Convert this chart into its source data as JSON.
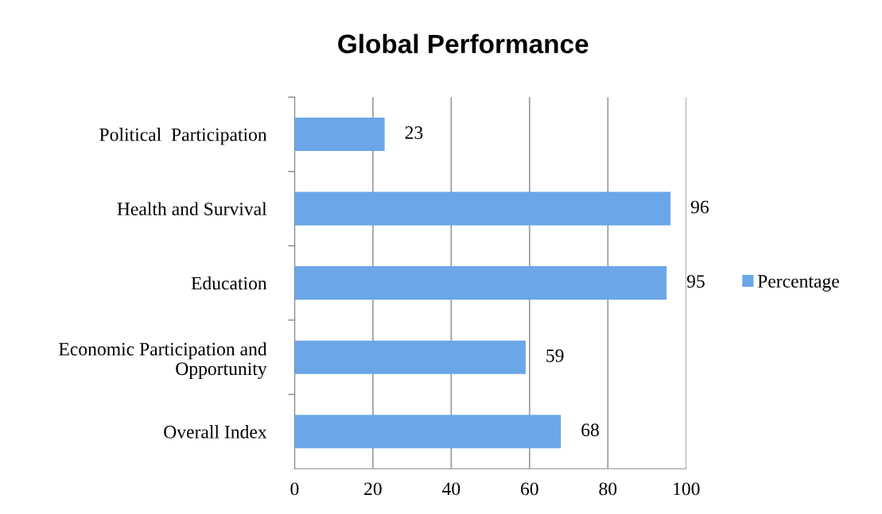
{
  "chart_data": {
    "type": "bar",
    "orientation": "horizontal",
    "title": "Global Performance",
    "categories": [
      "Political  Participation",
      "Health and Survival",
      "Education",
      "Economic Participation and\nOpportunity",
      "Overall Index"
    ],
    "series": [
      {
        "name": "Percentage",
        "color": "#6aa6e8",
        "values": [
          23,
          96,
          95,
          59,
          68
        ]
      }
    ],
    "xlim": [
      0,
      100
    ],
    "xticks": [
      0,
      20,
      40,
      60,
      80,
      100
    ],
    "grid": "x",
    "legend": "right",
    "data_labels": true
  }
}
